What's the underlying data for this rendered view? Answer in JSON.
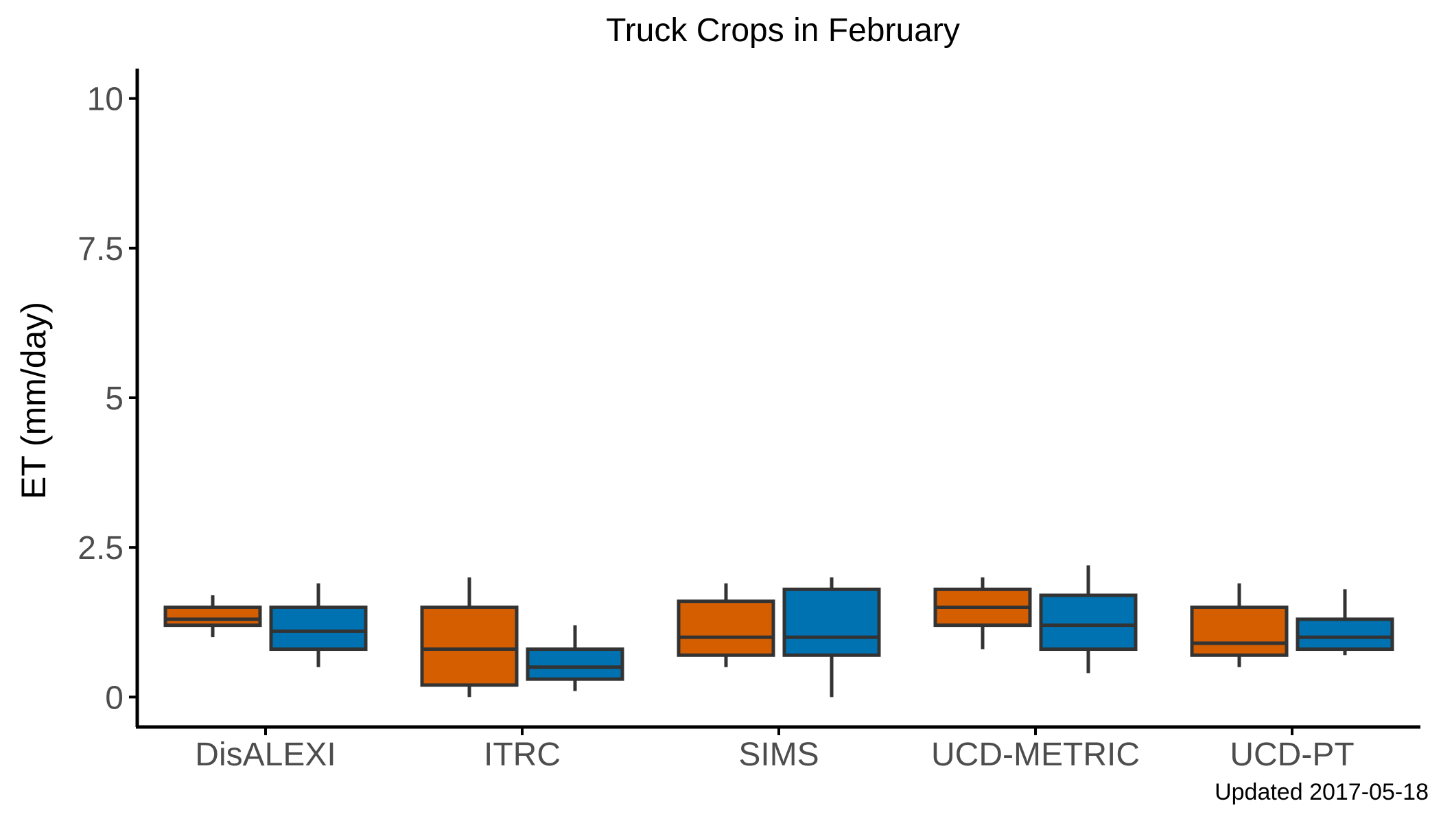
{
  "chart_data": {
    "type": "boxplot",
    "title": "Truck Crops in February",
    "xlabel": "",
    "ylabel": "ET (mm/day)",
    "ylim": [
      -0.5,
      10.5
    ],
    "yticks": [
      {
        "value": 0,
        "label": "0"
      },
      {
        "value": 2.5,
        "label": "2.5"
      },
      {
        "value": 5,
        "label": "5"
      },
      {
        "value": 7.5,
        "label": "7.5"
      },
      {
        "value": 10,
        "label": "10"
      }
    ],
    "categories": [
      "DisALEXI",
      "ITRC",
      "SIMS",
      "UCD-METRIC",
      "UCD-PT"
    ],
    "grid": false,
    "legend": "none",
    "series": [
      {
        "color": "#D55E00",
        "boxes": [
          {
            "min": 1.0,
            "q1": 1.2,
            "median": 1.3,
            "q3": 1.5,
            "max": 1.7
          },
          {
            "min": 0.0,
            "q1": 0.2,
            "median": 0.8,
            "q3": 1.5,
            "max": 2.0
          },
          {
            "min": 0.5,
            "q1": 0.7,
            "median": 1.0,
            "q3": 1.6,
            "max": 1.9
          },
          {
            "min": 0.8,
            "q1": 1.2,
            "median": 1.5,
            "q3": 1.8,
            "max": 2.0
          },
          {
            "min": 0.5,
            "q1": 0.7,
            "median": 0.9,
            "q3": 1.5,
            "max": 1.9
          }
        ]
      },
      {
        "color": "#0072B2",
        "boxes": [
          {
            "min": 0.5,
            "q1": 0.8,
            "median": 1.1,
            "q3": 1.5,
            "max": 1.9
          },
          {
            "min": 0.1,
            "q1": 0.3,
            "median": 0.5,
            "q3": 0.8,
            "max": 1.2
          },
          {
            "min": 0.0,
            "q1": 0.7,
            "median": 1.0,
            "q3": 1.8,
            "max": 2.0
          },
          {
            "min": 0.4,
            "q1": 0.8,
            "median": 1.2,
            "q3": 1.7,
            "max": 2.2
          },
          {
            "min": 0.7,
            "q1": 0.8,
            "median": 1.0,
            "q3": 1.3,
            "max": 1.8
          }
        ]
      }
    ],
    "caption": "Updated  2017-05-18"
  },
  "colors": {
    "box_outline": "#333333",
    "axis": "#000000",
    "tick_label": "#4d4d4d"
  }
}
